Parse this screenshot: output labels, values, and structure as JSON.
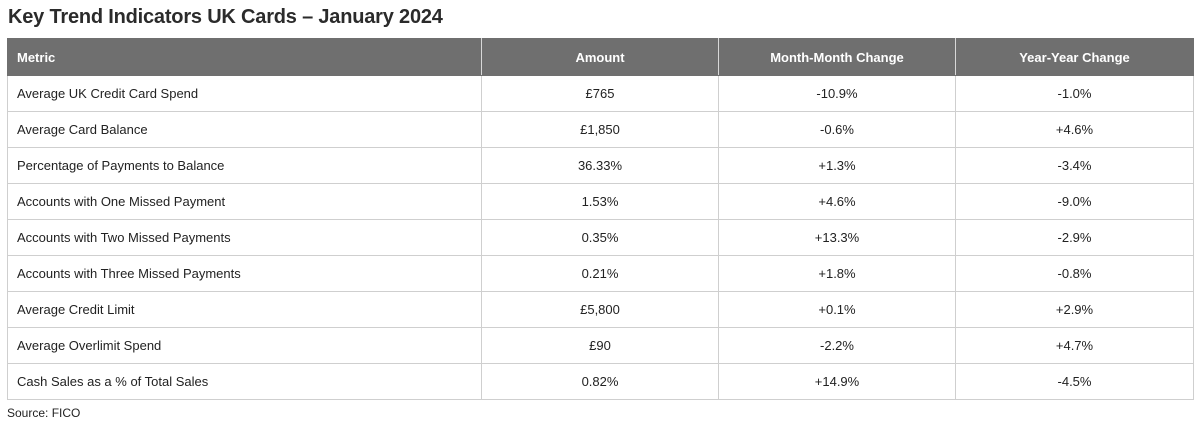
{
  "title": "Key Trend Indicators UK Cards – January 2024",
  "table": {
    "headers": [
      "Metric",
      "Amount",
      "Month-Month Change",
      "Year-Year Change"
    ],
    "rows": [
      [
        "Average UK Credit Card Spend",
        "£765",
        "-10.9%",
        "-1.0%"
      ],
      [
        "Average Card Balance",
        "£1,850",
        "-0.6%",
        "+4.6%"
      ],
      [
        "Percentage of Payments to Balance",
        "36.33%",
        "+1.3%",
        "-3.4%"
      ],
      [
        "Accounts with One Missed Payment",
        "1.53%",
        "+4.6%",
        "-9.0%"
      ],
      [
        "Accounts with Two Missed Payments",
        "0.35%",
        "+13.3%",
        "-2.9%"
      ],
      [
        "Accounts with Three Missed Payments",
        "0.21%",
        "+1.8%",
        "-0.8%"
      ],
      [
        "Average Credit Limit",
        "£5,800",
        "+0.1%",
        "+2.9%"
      ],
      [
        "Average Overlimit Spend",
        "£90",
        "-2.2%",
        "+4.7%"
      ],
      [
        "Cash Sales as a % of Total Sales",
        "0.82%",
        "+14.9%",
        "-4.5%"
      ]
    ]
  },
  "source": "Source: FICO",
  "colors": {
    "header_bg": "#6f6f6f",
    "header_text": "#ffffff",
    "border": "#cfcfcf"
  }
}
